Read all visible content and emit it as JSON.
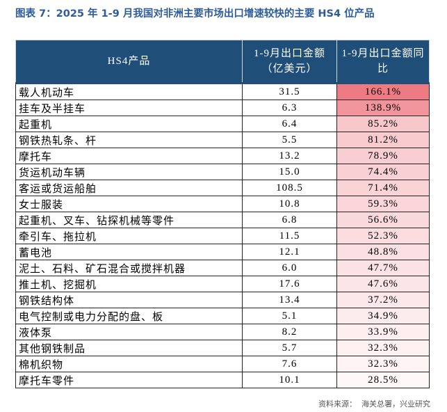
{
  "header": {
    "title": "图表 7：2025 年 1-9 月我国对非洲主要市场出口增速较快的主要 HS4 位产品"
  },
  "table": {
    "columns": [
      "HS4产品",
      "1-9月出口金额（亿美元）",
      "1-9月出口金额同比"
    ],
    "rows": [
      [
        "载人机动车",
        "31.5",
        "166.1%"
      ],
      [
        "挂车及半挂车",
        "6.3",
        "138.9%"
      ],
      [
        "起重机",
        "6.4",
        "85.2%"
      ],
      [
        "钢铁热轧条、杆",
        "5.5",
        "81.2%"
      ],
      [
        "摩托车",
        "13.2",
        "78.9%"
      ],
      [
        "货运机动车辆",
        "15.0",
        "74.4%"
      ],
      [
        "客运或货运船舶",
        "108.5",
        "71.4%"
      ],
      [
        "女士服装",
        "10.8",
        "59.3%"
      ],
      [
        "起重机、叉车、钻探机械等零件",
        "6.8",
        "56.6%"
      ],
      [
        "牵引车、拖拉机",
        "11.5",
        "52.3%"
      ],
      [
        "蓄电池",
        "12.1",
        "48.8%"
      ],
      [
        "泥土、石料、矿石混合或搅拌机器",
        "6.0",
        "47.7%"
      ],
      [
        "推土机、挖掘机",
        "17.6",
        "47.6%"
      ],
      [
        "钢铁结构体",
        "13.4",
        "37.2%"
      ],
      [
        "电气控制或电力分配的盘、板",
        "5.1",
        "34.9%"
      ],
      [
        "液体泵",
        "8.2",
        "33.9%"
      ],
      [
        "其他钢铁制品",
        "5.7",
        "32.3%"
      ],
      [
        "棉机织物",
        "7.6",
        "32.3%"
      ],
      [
        "摩托车零件",
        "10.1",
        "28.5%"
      ]
    ]
  },
  "footer": {
    "source": "资料来源：  海关总署，兴业研究"
  }
}
